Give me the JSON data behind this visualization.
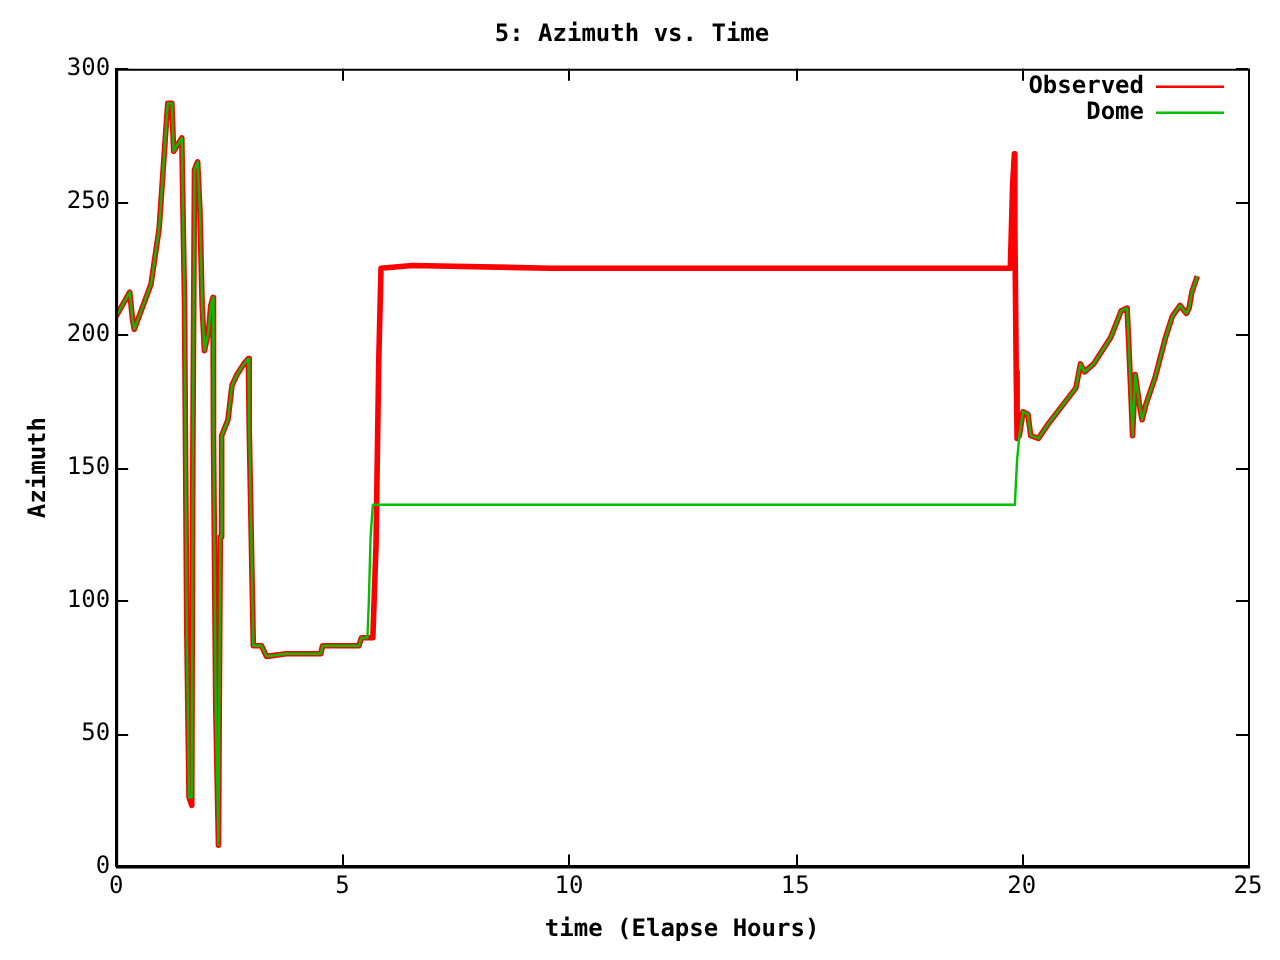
{
  "chart_data": {
    "type": "line",
    "title": "5: Azimuth vs. Time",
    "xlabel": "time (Elapse Hours)",
    "ylabel": "Azimuth",
    "xlim": [
      0,
      25
    ],
    "xticks": [
      0,
      5,
      10,
      15,
      20,
      25
    ],
    "ylim": [
      0,
      300
    ],
    "yticks": [
      0,
      50,
      100,
      150,
      200,
      250,
      300
    ],
    "grid": false,
    "legend": "top right",
    "marker": "none",
    "line_style": "solid",
    "series": [
      {
        "name": "Observed",
        "color": "#ff0000",
        "x": [
          0,
          0.3,
          0.36,
          0.4,
          0.77,
          0.95,
          1.09,
          1.14,
          1.23,
          1.27,
          1.45,
          1.51,
          1.56,
          1.61,
          1.67,
          1.69,
          1.73,
          1.8,
          1.85,
          1.9,
          1.95,
          2.04,
          2.09,
          2.14,
          2.15,
          2.2,
          2.26,
          2.3,
          2.33,
          2.47,
          2.56,
          2.67,
          2.82,
          2.92,
          2.94,
          3.0,
          3.03,
          3.21,
          3.32,
          3.76,
          4.52,
          4.56,
          5.36,
          5.42,
          5.55,
          5.67,
          5.74,
          5.8,
          5.85,
          6.54,
          9.6,
          19.75,
          19.8,
          19.84,
          19.85,
          19.88,
          19.9,
          19.95,
          20.03,
          20.14,
          20.2,
          20.37,
          20.57,
          21.2,
          21.3,
          21.39,
          21.59,
          21.97,
          22.2,
          22.33,
          22.36,
          22.42,
          22.45,
          22.51,
          22.6,
          22.66,
          22.75,
          22.95,
          23.18,
          23.33,
          23.5,
          23.64,
          23.7,
          23.76,
          23.88
        ],
        "values": [
          207,
          216,
          206,
          202,
          219,
          240,
          275,
          287,
          287,
          269,
          274,
          212,
          89,
          26,
          23,
          143,
          262,
          265,
          247,
          211,
          194,
          201,
          211,
          214,
          162,
          60,
          8,
          124,
          162,
          168,
          181,
          185,
          189,
          191,
          164,
          110,
          83,
          83,
          79,
          80,
          80,
          83,
          83,
          86,
          86,
          86,
          121,
          190,
          225,
          226,
          225,
          225,
          256,
          268,
          241,
          186,
          161,
          162,
          171,
          170,
          162,
          161,
          166,
          180,
          189,
          186,
          189,
          199,
          209,
          210,
          199,
          175,
          162,
          185,
          174,
          168,
          174,
          184,
          199,
          207,
          211,
          208,
          210,
          216,
          222
        ]
      },
      {
        "name": "Dome",
        "color": "#00c000",
        "x": [
          0,
          0.3,
          0.36,
          0.4,
          0.77,
          0.95,
          1.09,
          1.14,
          1.23,
          1.27,
          1.45,
          1.51,
          1.56,
          1.61,
          1.67,
          1.69,
          1.73,
          1.8,
          1.85,
          1.9,
          1.95,
          2.04,
          2.09,
          2.14,
          2.15,
          2.2,
          2.26,
          2.3,
          2.33,
          2.47,
          2.56,
          2.67,
          2.82,
          2.92,
          2.94,
          3.0,
          3.03,
          3.21,
          3.32,
          3.76,
          4.52,
          4.56,
          5.36,
          5.42,
          5.55,
          5.58,
          5.62,
          5.67,
          19.85,
          19.9,
          19.95,
          20.03,
          20.14,
          20.2,
          20.37,
          20.57,
          21.2,
          21.3,
          21.39,
          21.59,
          21.97,
          22.2,
          22.33,
          22.36,
          22.42,
          22.45,
          22.51,
          22.6,
          22.66,
          22.75,
          22.95,
          23.18,
          23.33,
          23.5,
          23.64,
          23.7,
          23.76,
          23.88
        ],
        "values": [
          207,
          216,
          206,
          202,
          219,
          240,
          275,
          287,
          287,
          269,
          274,
          212,
          89,
          26,
          26,
          143,
          262,
          265,
          247,
          211,
          194,
          201,
          211,
          214,
          162,
          60,
          8,
          124,
          162,
          168,
          181,
          185,
          189,
          191,
          164,
          110,
          83,
          83,
          79,
          80,
          80,
          83,
          83,
          86,
          86,
          99,
          124,
          136,
          136,
          153,
          162,
          171,
          170,
          162,
          161,
          166,
          180,
          189,
          186,
          189,
          199,
          209,
          210,
          199,
          175,
          162,
          185,
          174,
          168,
          174,
          184,
          199,
          207,
          211,
          208,
          210,
          216,
          222
        ]
      }
    ]
  }
}
